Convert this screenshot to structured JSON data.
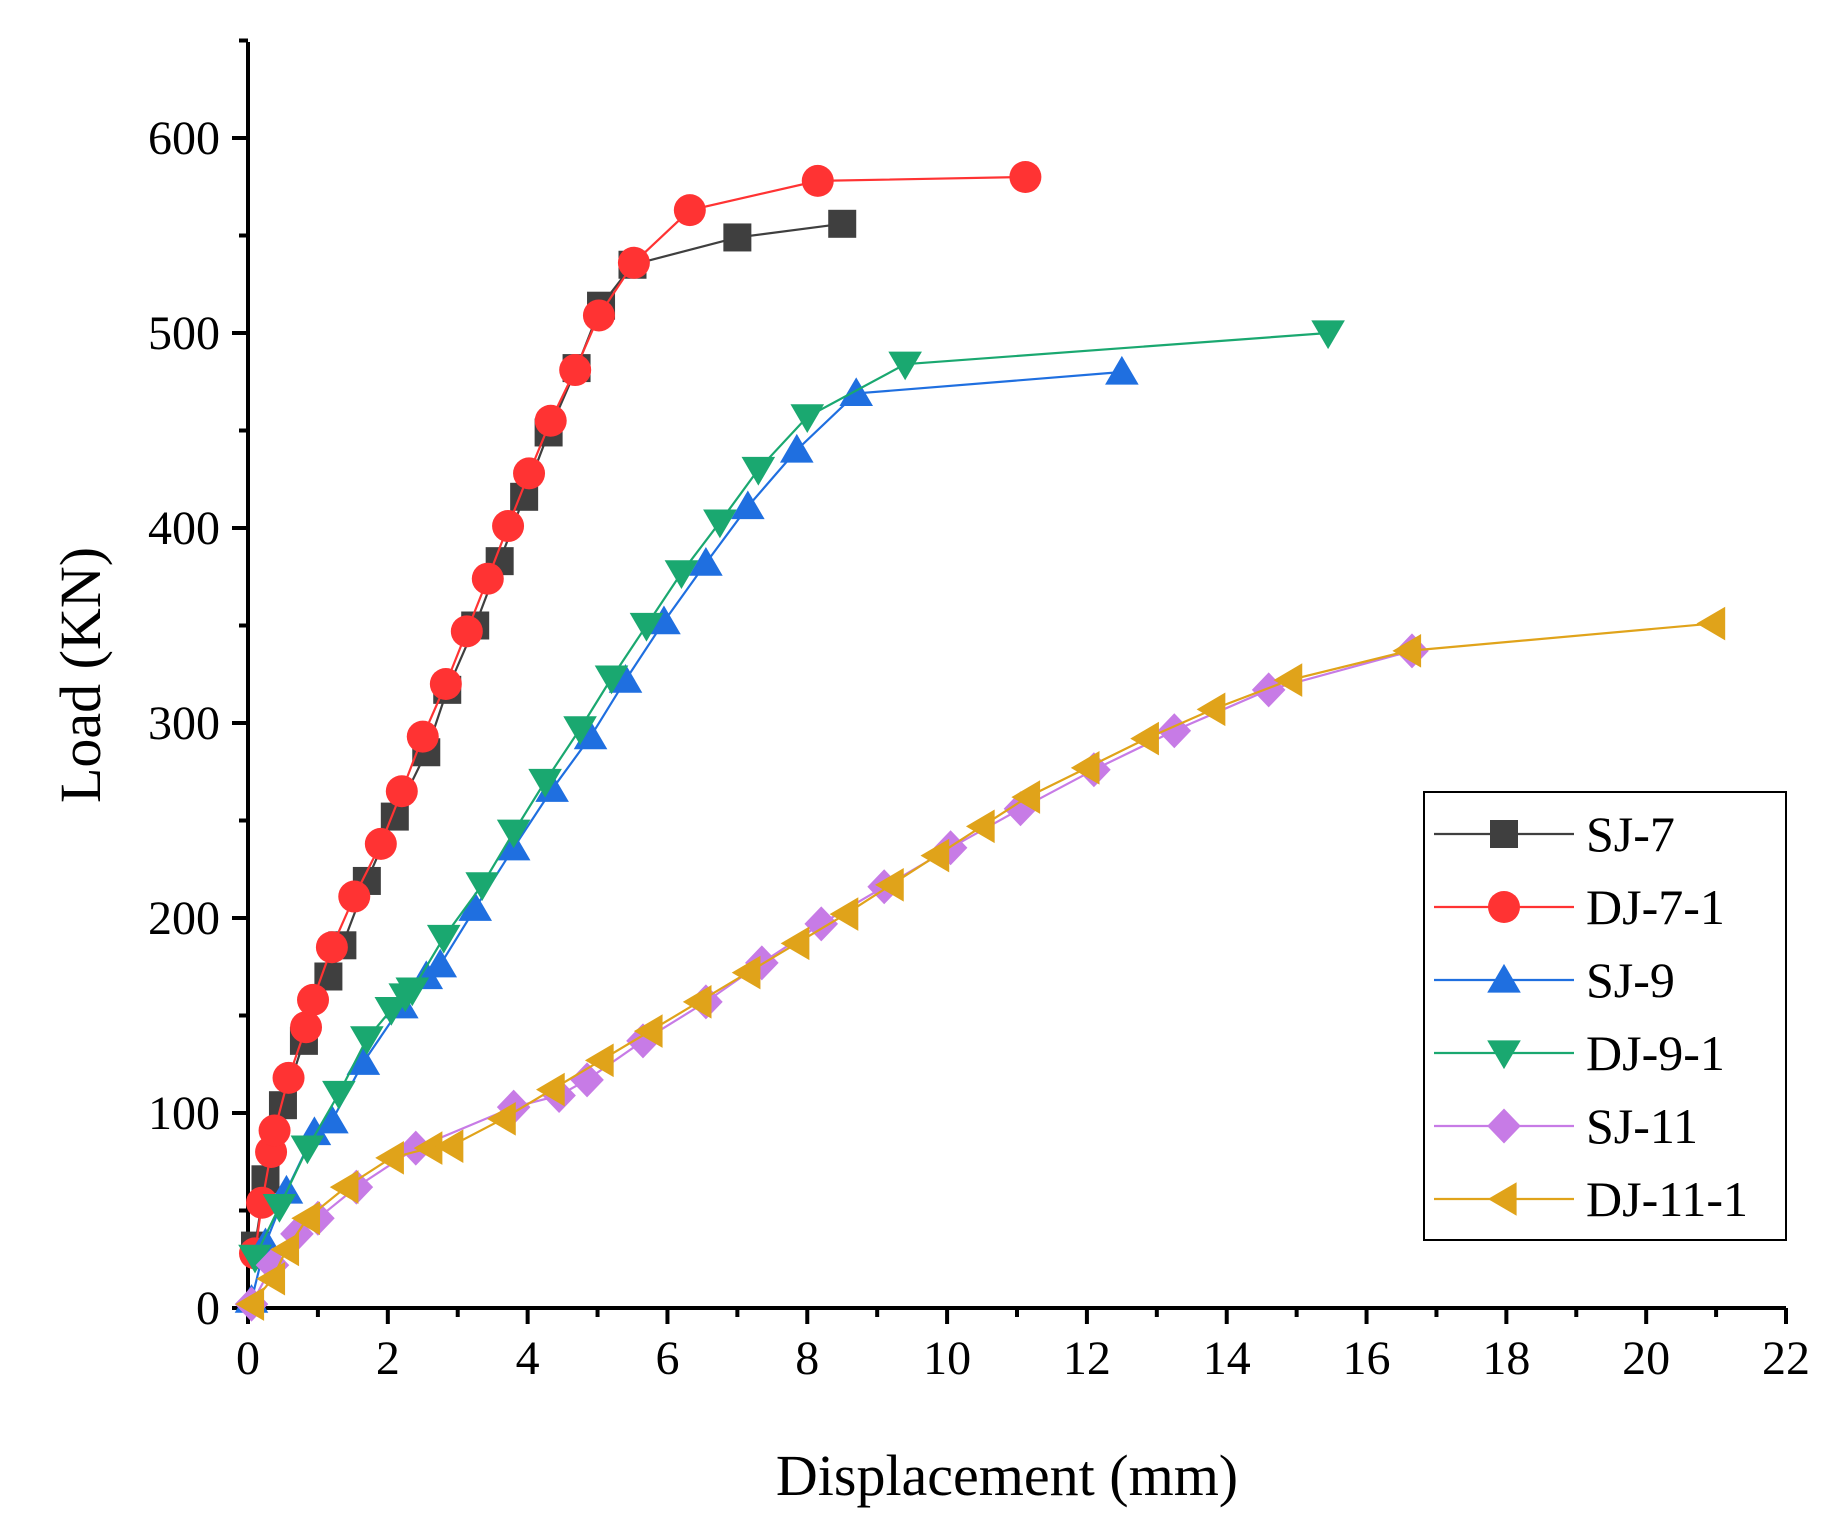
{
  "chart_data": {
    "type": "line",
    "title": "",
    "xlabel": "Displacement (mm)",
    "ylabel": "Load (KN)",
    "xlim": [
      0,
      22
    ],
    "ylim": [
      0,
      650
    ],
    "xticks": [
      0,
      2,
      4,
      6,
      8,
      10,
      12,
      14,
      16,
      18,
      20,
      22
    ],
    "yticks": [
      0,
      100,
      200,
      300,
      400,
      500,
      600
    ],
    "legend_position": "bottom-right",
    "grid": false,
    "series": [
      {
        "name": "SJ-7",
        "color": "#3f3f3f",
        "marker": "square",
        "x": [
          0.1,
          0.25,
          0.5,
          0.8,
          1.15,
          1.35,
          1.7,
          2.1,
          2.55,
          2.85,
          3.25,
          3.6,
          3.95,
          4.3,
          4.7,
          5.05,
          5.5,
          7.0,
          8.5
        ],
        "y": [
          32,
          66,
          104,
          137,
          170,
          186,
          219,
          252,
          285,
          317,
          350,
          383,
          416,
          449,
          482,
          514,
          535,
          549,
          556
        ]
      },
      {
        "name": "DJ-7-1",
        "color": "#ff3333",
        "marker": "circle",
        "x": [
          0.1,
          0.2,
          0.33,
          0.38,
          0.58,
          0.83,
          0.93,
          1.2,
          1.52,
          1.9,
          2.2,
          2.5,
          2.83,
          3.13,
          3.43,
          3.72,
          4.02,
          4.33,
          4.68,
          5.02,
          5.52,
          6.32,
          8.15,
          11.12
        ],
        "y": [
          28,
          54,
          80,
          91,
          118,
          144,
          158,
          185,
          211,
          238,
          265,
          293,
          320,
          347,
          374,
          401,
          428,
          455,
          481,
          509,
          536,
          563,
          578,
          580
        ]
      },
      {
        "name": "SJ-9",
        "color": "#1f6fe0",
        "marker": "triangle-up",
        "x": [
          0.05,
          0.25,
          0.55,
          0.95,
          1.2,
          1.65,
          2.2,
          2.55,
          2.75,
          3.25,
          3.8,
          4.35,
          4.9,
          5.4,
          5.95,
          6.55,
          7.15,
          7.85,
          8.7,
          12.5
        ],
        "y": [
          4,
          33,
          60,
          90,
          96,
          126,
          155,
          170,
          176,
          205,
          236,
          266,
          293,
          322,
          352,
          382,
          411,
          440,
          469,
          480
        ]
      },
      {
        "name": "DJ-9-1",
        "color": "#1aa870",
        "marker": "triangle-down",
        "x": [
          0.1,
          0.45,
          0.85,
          1.3,
          1.7,
          2.05,
          2.25,
          2.35,
          2.8,
          3.35,
          3.8,
          4.25,
          4.75,
          5.2,
          5.7,
          6.2,
          6.75,
          7.3,
          8.0,
          9.4,
          15.45
        ],
        "y": [
          26,
          52,
          82,
          110,
          138,
          153,
          160,
          163,
          190,
          217,
          244,
          270,
          297,
          323,
          350,
          377,
          403,
          430,
          457,
          484,
          500
        ]
      },
      {
        "name": "SJ-11",
        "color": "#c77be6",
        "marker": "diamond",
        "x": [
          0.05,
          0.35,
          0.7,
          1.0,
          1.55,
          2.4,
          3.8,
          4.45,
          4.85,
          5.65,
          6.55,
          7.35,
          8.2,
          9.1,
          10.05,
          11.05,
          12.1,
          13.25,
          14.6,
          16.65
        ],
        "y": [
          2,
          22,
          38,
          46,
          62,
          82,
          103,
          109,
          117,
          137,
          157,
          177,
          197,
          216,
          236,
          256,
          276,
          296,
          317,
          337
        ]
      },
      {
        "name": "DJ-11-1",
        "color": "#e0a31a",
        "marker": "triangle-left",
        "x": [
          0.05,
          0.35,
          0.55,
          0.85,
          1.4,
          2.05,
          2.6,
          2.9,
          3.65,
          4.35,
          5.05,
          5.75,
          6.45,
          7.15,
          7.85,
          8.55,
          9.2,
          9.85,
          10.5,
          11.15,
          12.0,
          12.85,
          13.8,
          14.9,
          16.6,
          20.95
        ],
        "y": [
          2,
          15,
          30,
          46,
          62,
          77,
          82,
          83,
          97,
          112,
          127,
          142,
          157,
          172,
          187,
          202,
          217,
          232,
          247,
          262,
          277,
          292,
          307,
          322,
          337,
          351
        ]
      }
    ]
  }
}
